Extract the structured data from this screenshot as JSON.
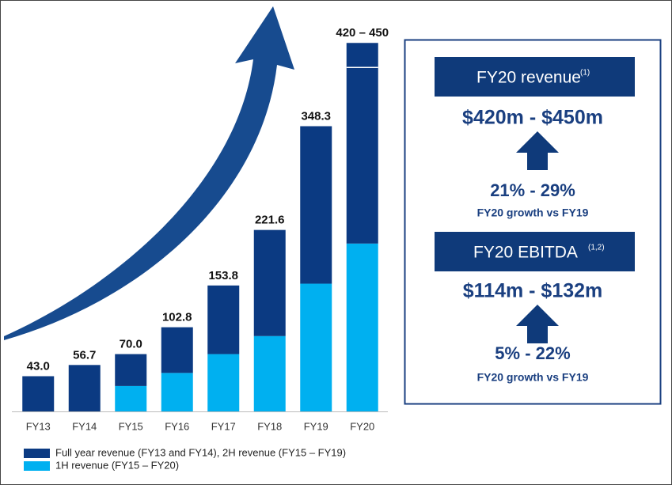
{
  "chart_data": {
    "type": "stacked-bar",
    "categories": [
      "FY13",
      "FY14",
      "FY15",
      "FY16",
      "FY17",
      "FY18",
      "FY19",
      "FY20"
    ],
    "series": [
      {
        "name": "1H revenue (FY15 – FY20)",
        "color": "#00b0f0",
        "values": [
          null,
          null,
          31,
          47,
          70,
          92,
          156,
          205
        ]
      },
      {
        "name": "Full year revenue (FY13 and FY14), 2H revenue (FY15 – FY19)",
        "color": "#0b3a82",
        "values": [
          43.0,
          56.7,
          39,
          55.8,
          83.8,
          129.6,
          192.3,
          215
        ]
      }
    ],
    "totals": [
      43.0,
      56.7,
      70.0,
      102.8,
      153.8,
      221.6,
      348.3,
      null
    ],
    "total_labels": [
      "43.0",
      "56.7",
      "70.0",
      "102.8",
      "153.8",
      "221.6",
      "348.3",
      null
    ],
    "range": {
      "low": 420,
      "high": 450,
      "label": "420 – 450"
    }
  },
  "panel": {
    "revenue_title": "FY20 revenue",
    "revenue_note": "(1)",
    "revenue_value": "$420m - $450m",
    "revenue_growth": "21% - 29%",
    "revenue_growth_caption": "FY20 growth vs FY19",
    "ebitda_title": "FY20 EBITDA",
    "ebitda_note": "(1,2)",
    "ebitda_value": "$114m - $132m",
    "ebitda_growth": "5% - 22%",
    "ebitda_growth_caption": "FY20 growth vs FY19"
  }
}
